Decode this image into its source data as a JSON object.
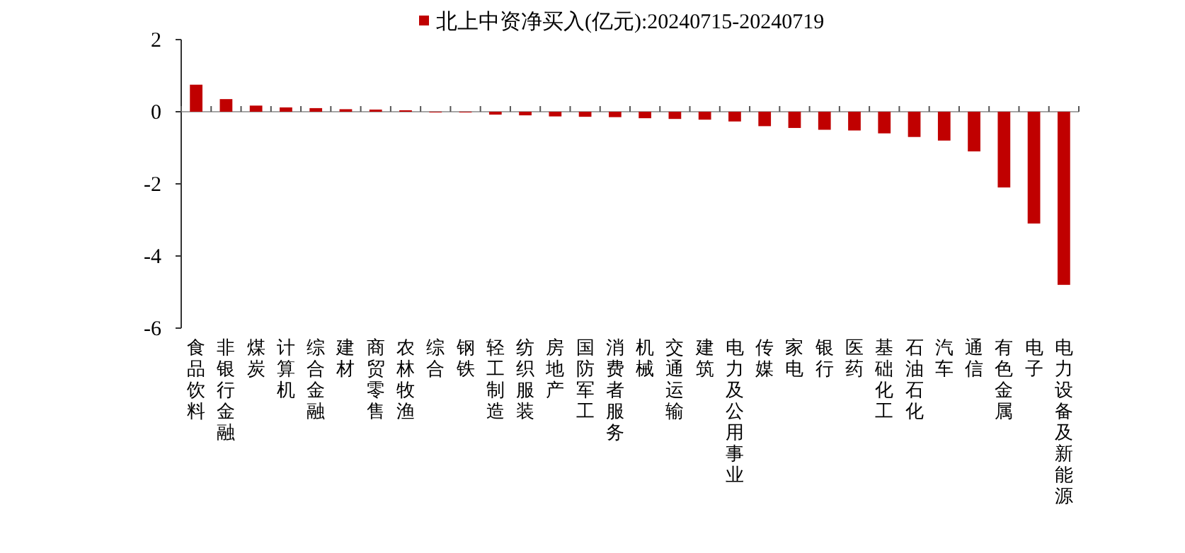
{
  "chart_data": {
    "type": "bar",
    "categories": [
      "食品饮料",
      "非银行金融",
      "煤炭",
      "计算机",
      "综合金融",
      "建材",
      "商贸零售",
      "农林牧渔",
      "综合",
      "钢铁",
      "轻工制造",
      "纺织服装",
      "房地产",
      "国防军工",
      "消费者服务",
      "机械",
      "交通运输",
      "建筑",
      "电力及公用事业",
      "传媒",
      "家电",
      "银行",
      "医药",
      "基础化工",
      "石油石化",
      "汽车",
      "通信",
      "有色金属",
      "电子",
      "电力设备及新能源"
    ],
    "series": [
      {
        "name": "北上中资净买入(亿元):20240715-20240719",
        "color": "#c00000",
        "values": [
          0.75,
          0.35,
          0.17,
          0.12,
          0.1,
          0.07,
          0.06,
          0.04,
          -0.02,
          -0.02,
          -0.08,
          -0.1,
          -0.13,
          -0.14,
          -0.15,
          -0.18,
          -0.2,
          -0.22,
          -0.27,
          -0.4,
          -0.45,
          -0.5,
          -0.52,
          -0.6,
          -0.7,
          -0.8,
          -1.1,
          -2.1,
          -3.1,
          -4.8
        ]
      }
    ],
    "ylim": [
      -6,
      2
    ],
    "yticks": [
      -6,
      -4,
      -2,
      0,
      2
    ],
    "legend": "top"
  }
}
